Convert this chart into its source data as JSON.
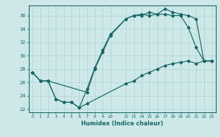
{
  "xlabel": "Humidex (Indice chaleur)",
  "ylabel": "",
  "background_color": "#cce8e8",
  "grid_color": "#b0d0d0",
  "line_color": "#1a6666",
  "xlim": [
    -0.5,
    23.5
  ],
  "ylim": [
    21.5,
    37.5
  ],
  "yticks": [
    22,
    24,
    26,
    28,
    30,
    32,
    34,
    36
  ],
  "xticks": [
    0,
    1,
    2,
    3,
    4,
    5,
    6,
    7,
    8,
    9,
    10,
    12,
    13,
    14,
    15,
    16,
    17,
    18,
    19,
    20,
    21,
    22,
    23
  ],
  "line1_x": [
    0,
    1,
    2,
    3,
    4,
    5,
    6,
    7,
    8,
    9,
    10,
    12,
    13,
    14,
    15,
    16,
    17,
    18,
    19,
    20,
    21,
    22,
    23
  ],
  "line1_y": [
    27.5,
    26.2,
    26.2,
    23.5,
    23.0,
    23.0,
    22.2,
    25.0,
    28.2,
    30.8,
    33.2,
    35.5,
    36.0,
    36.0,
    36.5,
    36.2,
    36.2,
    36.0,
    36.0,
    34.2,
    31.2,
    29.2,
    29.2
  ],
  "line2_x": [
    0,
    1,
    2,
    7,
    8,
    9,
    10,
    12,
    13,
    14,
    15,
    16,
    17,
    18,
    19,
    20,
    21,
    22,
    23
  ],
  "line2_y": [
    27.5,
    26.2,
    26.2,
    24.5,
    28.0,
    30.5,
    33.0,
    35.5,
    36.0,
    36.2,
    36.0,
    36.2,
    37.0,
    36.5,
    36.2,
    36.0,
    35.5,
    29.2,
    29.2
  ],
  "line3_x": [
    0,
    1,
    2,
    3,
    4,
    5,
    6,
    7,
    12,
    13,
    14,
    15,
    16,
    17,
    18,
    19,
    20,
    21,
    22,
    23
  ],
  "line3_y": [
    27.5,
    26.2,
    26.2,
    23.5,
    23.0,
    23.0,
    22.2,
    22.8,
    25.8,
    26.2,
    27.0,
    27.5,
    28.0,
    28.5,
    28.8,
    29.0,
    29.2,
    28.8,
    29.2,
    29.2
  ]
}
